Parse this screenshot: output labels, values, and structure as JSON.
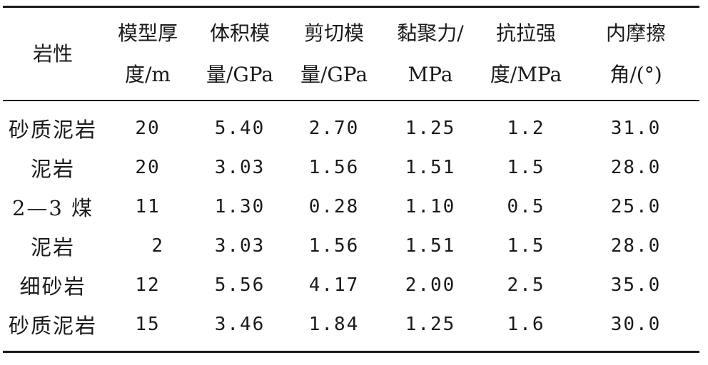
{
  "table": {
    "headers": [
      {
        "lines": [
          "岩性"
        ]
      },
      {
        "lines": [
          "模型厚",
          "度/m"
        ]
      },
      {
        "lines": [
          "体积模",
          "量/GPa"
        ]
      },
      {
        "lines": [
          "剪切模",
          "量/GPa"
        ]
      },
      {
        "lines": [
          "黏聚力/",
          "MPa"
        ]
      },
      {
        "lines": [
          "抗拉强",
          "度/MPa"
        ]
      },
      {
        "lines": [
          "内摩擦",
          "角/(°)"
        ]
      }
    ],
    "rows": [
      [
        "砂质泥岩",
        "20",
        "5.40",
        "2.70",
        "1.25",
        "1.2",
        "31.0"
      ],
      [
        "泥岩",
        "20",
        "3.03",
        "1.56",
        "1.51",
        "1.5",
        "28.0"
      ],
      [
        "2—3 煤",
        "11",
        "1.30",
        "0.28",
        "1.10",
        "0.5",
        "25.0"
      ],
      [
        "泥岩",
        "2",
        "3.03",
        "1.56",
        "1.51",
        "1.5",
        "28.0"
      ],
      [
        "细砂岩",
        "12",
        "5.56",
        "4.17",
        "2.00",
        "2.5",
        "35.0"
      ],
      [
        "砂质泥岩",
        "15",
        "3.46",
        "1.84",
        "1.25",
        "1.6",
        "30.0"
      ]
    ]
  }
}
